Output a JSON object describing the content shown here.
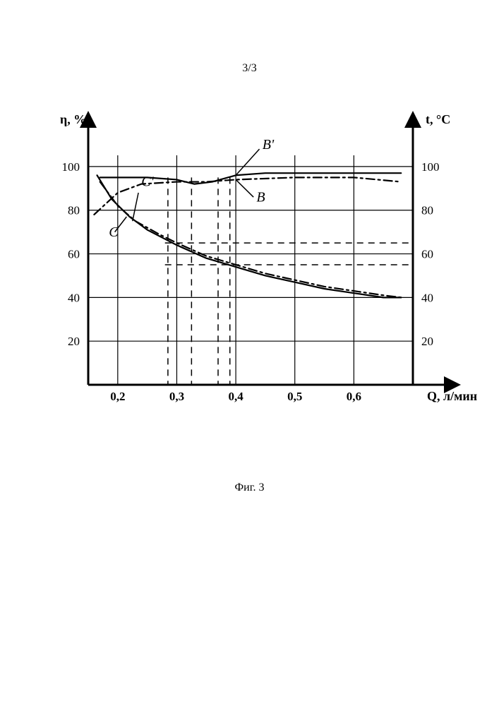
{
  "page_number": "3/3",
  "caption": "Фиг. 3",
  "chart": {
    "type": "line",
    "background_color": "#ffffff",
    "stroke_color": "#000000",
    "axis_width": 3,
    "grid_width": 1.2,
    "curve_width": 2.2,
    "font_family": "Times New Roman, serif",
    "tick_fontsize": 17,
    "axis_label_fontsize": 18,
    "curve_label_fontsize": 20,
    "x": {
      "label": "Q, л/мин",
      "ticks": [
        "0,2",
        "0,3",
        "0,4",
        "0,5",
        "0,6"
      ],
      "min": 0.15,
      "max": 0.7
    },
    "y_left": {
      "label": "η, %",
      "ticks": [
        20,
        40,
        60,
        80,
        100
      ],
      "min": 0,
      "max": 110
    },
    "y_right": {
      "label": "t, °C",
      "ticks": [
        20,
        40,
        60,
        80,
        100
      ],
      "min": 0,
      "max": 110
    },
    "y_gridlines": [
      20,
      40,
      60,
      80,
      100
    ],
    "x_gridlines": [
      0.2,
      0.3,
      0.4,
      0.5,
      0.6
    ],
    "curves": {
      "B": {
        "label": "B",
        "style": "dashdot",
        "points": [
          [
            0.16,
            78
          ],
          [
            0.2,
            88
          ],
          [
            0.24,
            92
          ],
          [
            0.3,
            93
          ],
          [
            0.35,
            93
          ],
          [
            0.4,
            94
          ],
          [
            0.5,
            95
          ],
          [
            0.6,
            95
          ],
          [
            0.68,
            93
          ]
        ]
      },
      "B_prime": {
        "label": "B'",
        "style": "solid",
        "points": [
          [
            0.17,
            95
          ],
          [
            0.2,
            95
          ],
          [
            0.25,
            95
          ],
          [
            0.3,
            94
          ],
          [
            0.33,
            92
          ],
          [
            0.36,
            93
          ],
          [
            0.4,
            96
          ],
          [
            0.45,
            97
          ],
          [
            0.5,
            97
          ],
          [
            0.6,
            97
          ],
          [
            0.68,
            97
          ]
        ]
      },
      "C": {
        "label": "C",
        "style": "solid",
        "points": [
          [
            0.165,
            96
          ],
          [
            0.19,
            85
          ],
          [
            0.22,
            77
          ],
          [
            0.25,
            71
          ],
          [
            0.3,
            64
          ],
          [
            0.35,
            58
          ],
          [
            0.4,
            54
          ],
          [
            0.45,
            50
          ],
          [
            0.5,
            47
          ],
          [
            0.55,
            44
          ],
          [
            0.6,
            42
          ],
          [
            0.65,
            40
          ],
          [
            0.68,
            40
          ]
        ]
      },
      "C_prime": {
        "label": "C'",
        "style": "dashdot",
        "points": [
          [
            0.17,
            93
          ],
          [
            0.2,
            82
          ],
          [
            0.23,
            75
          ],
          [
            0.27,
            69
          ],
          [
            0.3,
            65
          ],
          [
            0.35,
            59
          ],
          [
            0.4,
            55
          ],
          [
            0.45,
            51
          ],
          [
            0.5,
            48
          ],
          [
            0.55,
            45
          ],
          [
            0.6,
            43
          ],
          [
            0.65,
            41
          ],
          [
            0.68,
            40
          ]
        ]
      }
    },
    "guide_dashes": {
      "vertical_x": [
        0.285,
        0.325,
        0.37,
        0.39
      ],
      "horizontal_y": [
        55,
        65
      ]
    },
    "label_leaders": {
      "B_prime": {
        "from": [
          0.4,
          96
        ],
        "to": [
          0.44,
          108
        ],
        "text_at": [
          0.445,
          108
        ]
      },
      "B": {
        "from": [
          0.4,
          94
        ],
        "to": [
          0.43,
          86
        ],
        "text_at": [
          0.435,
          84
        ]
      },
      "C_prime": {
        "from": [
          0.225,
          75
        ],
        "to": [
          0.235,
          88
        ],
        "text_at": [
          0.24,
          91
        ]
      },
      "C": {
        "from": [
          0.215,
          77
        ],
        "to": [
          0.195,
          70
        ],
        "text_at": [
          0.185,
          68
        ]
      }
    }
  }
}
